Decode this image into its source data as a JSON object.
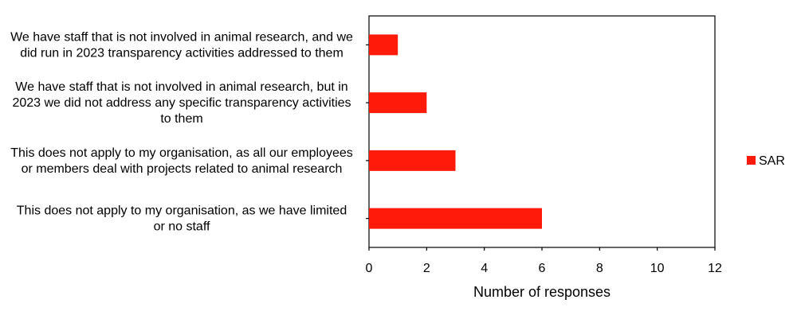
{
  "chart_data": {
    "type": "bar",
    "orientation": "horizontal",
    "categories": [
      [
        "We have staff that is not involved in animal research, and we",
        "did run in 2023 transparency activities addressed to them"
      ],
      [
        "We have staff that is not involved in animal research, but in",
        "2023 we did not address any specific transparency activities",
        "to them"
      ],
      [
        "This does not apply to my organisation, as all our employees",
        "or members deal with projects related to animal research"
      ],
      [
        "This does not apply to my organisation, as we have limited",
        "or no staff"
      ]
    ],
    "series": [
      {
        "name": "SAR",
        "values": [
          1,
          2,
          3,
          6
        ],
        "color": "#ff1a0a"
      }
    ],
    "xlabel": "Number of responses",
    "ylabel": "",
    "xlim": [
      0,
      12
    ],
    "xticks": [
      0,
      2,
      4,
      6,
      8,
      10,
      12
    ],
    "grid": false,
    "legend_position": "right"
  }
}
